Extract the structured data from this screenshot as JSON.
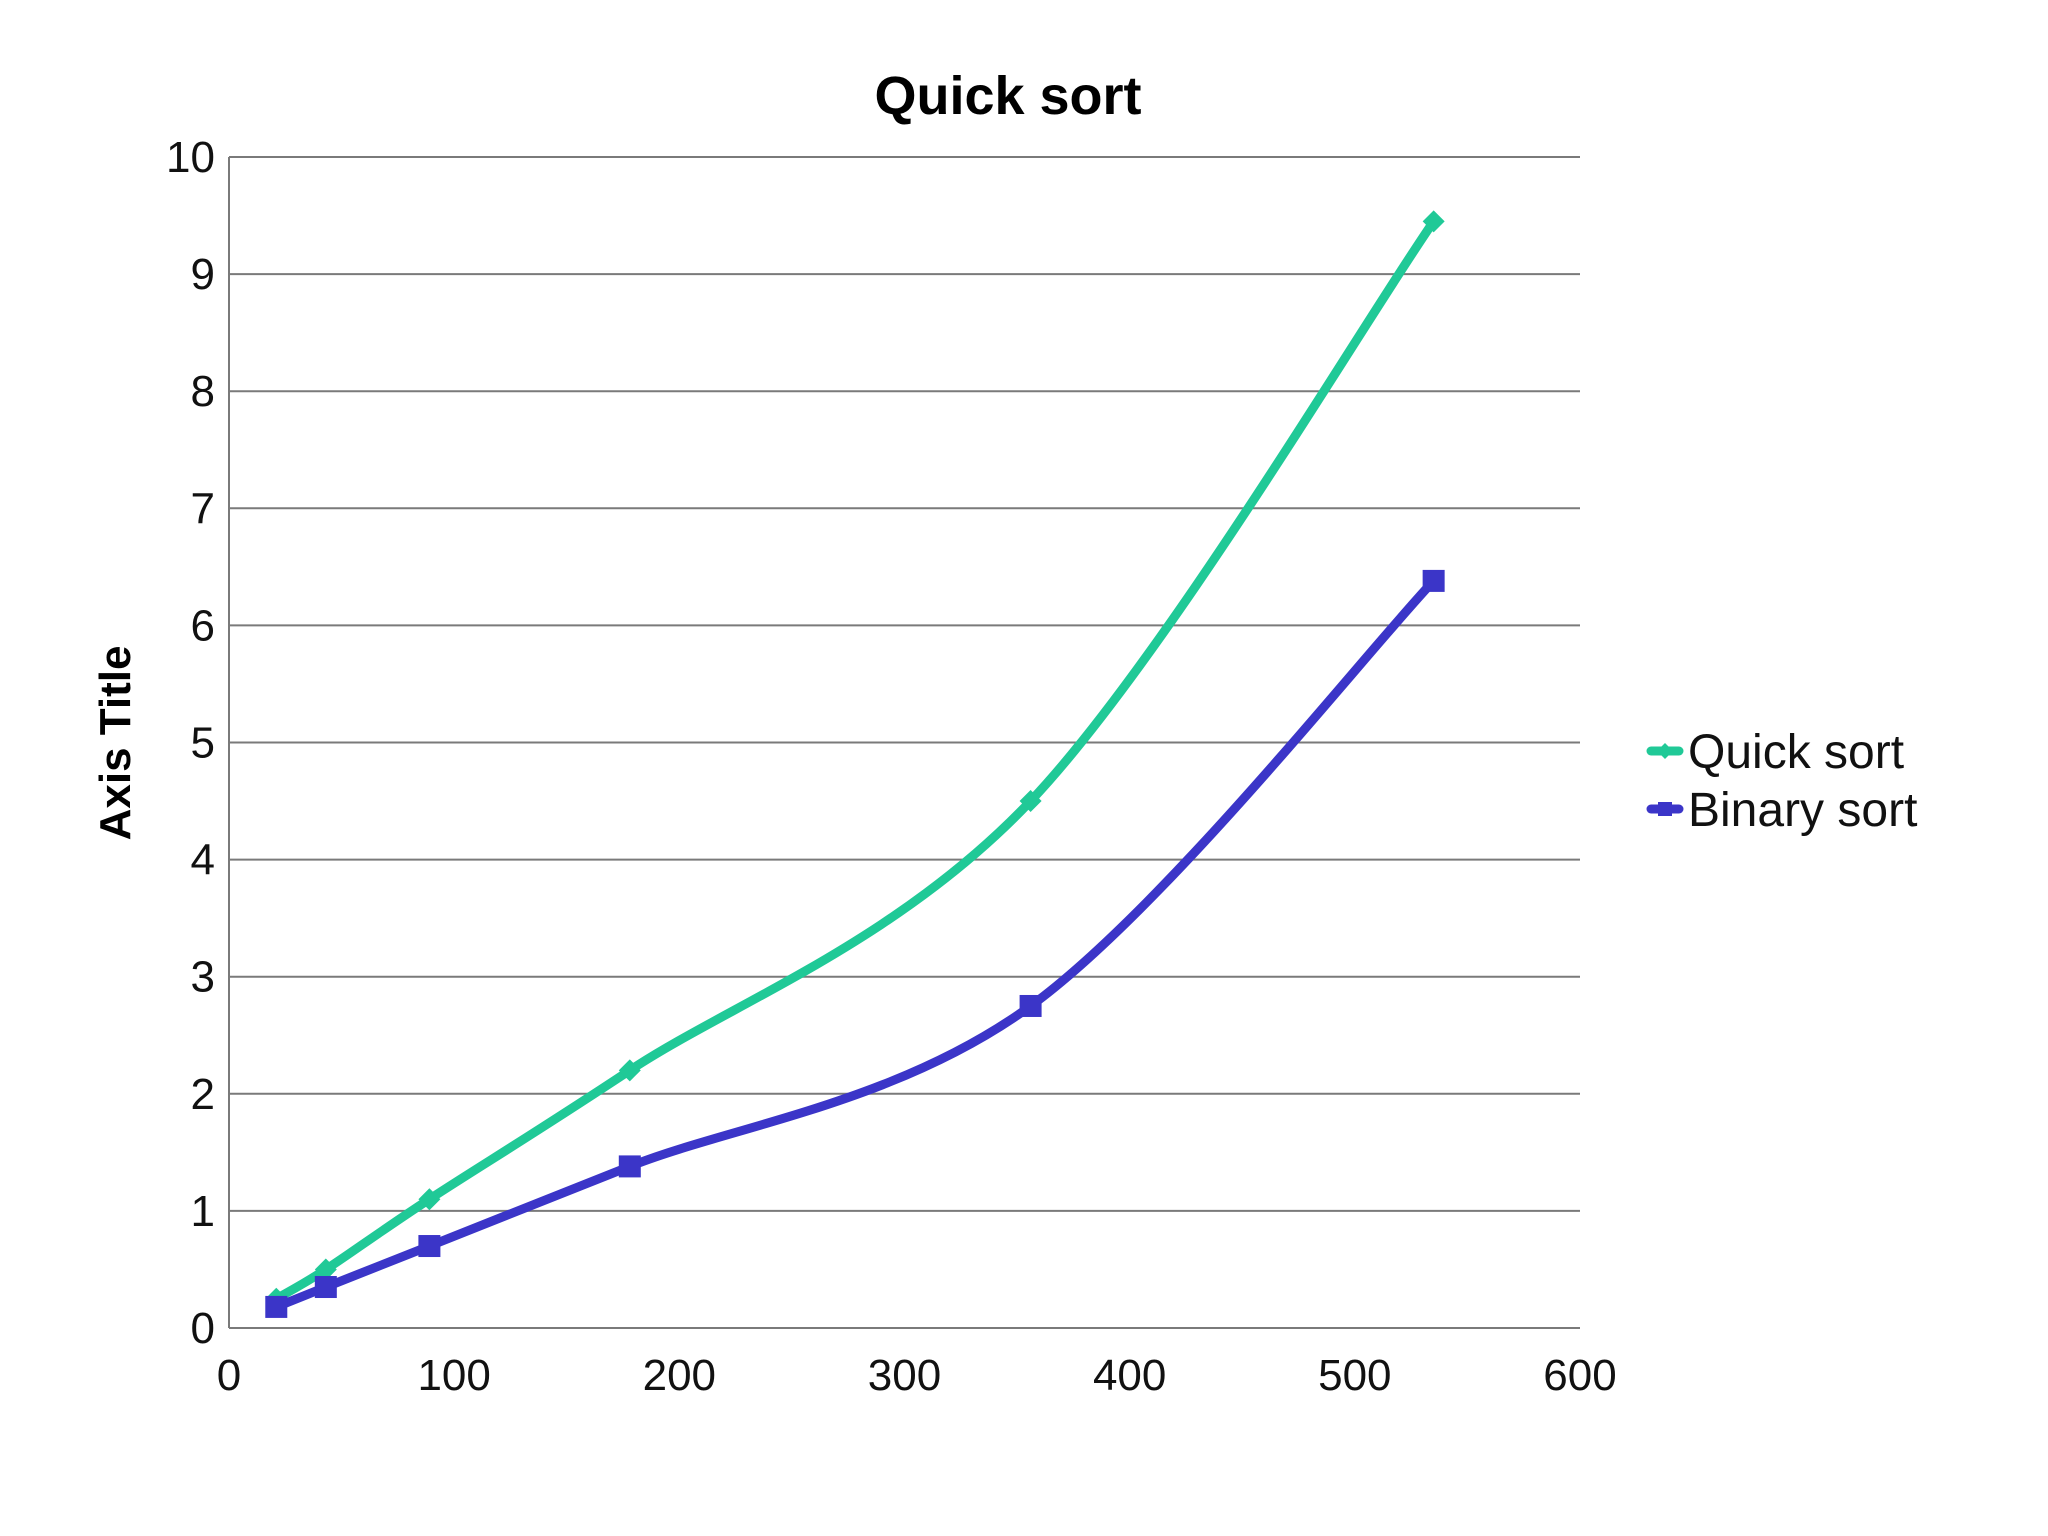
{
  "chart_data": {
    "type": "line",
    "title": "Quick sort",
    "xlabel": "",
    "ylabel": "Axis Title",
    "xlim": [
      0,
      600
    ],
    "ylim": [
      0,
      10
    ],
    "x_ticks": [
      "0",
      "100",
      "200",
      "300",
      "400",
      "500",
      "600"
    ],
    "y_ticks": [
      "0",
      "1",
      "2",
      "3",
      "4",
      "5",
      "6",
      "7",
      "8",
      "9",
      "10"
    ],
    "grid": "horizontal",
    "legend_position": "right",
    "smooth": true,
    "series": [
      {
        "name": "Quick sort",
        "color": "#20c997",
        "marker": "diamond",
        "points": [
          [
            21,
            0.25
          ],
          [
            43,
            0.5
          ],
          [
            89,
            1.1
          ],
          [
            178,
            2.2
          ],
          [
            356,
            4.5
          ],
          [
            535,
            9.45
          ]
        ]
      },
      {
        "name": "Binary sort",
        "color": "#3b35c8",
        "marker": "square",
        "points": [
          [
            21,
            0.18
          ],
          [
            43,
            0.35
          ],
          [
            89,
            0.7
          ],
          [
            178,
            1.38
          ],
          [
            356,
            2.75
          ],
          [
            535,
            6.38
          ]
        ]
      }
    ]
  }
}
